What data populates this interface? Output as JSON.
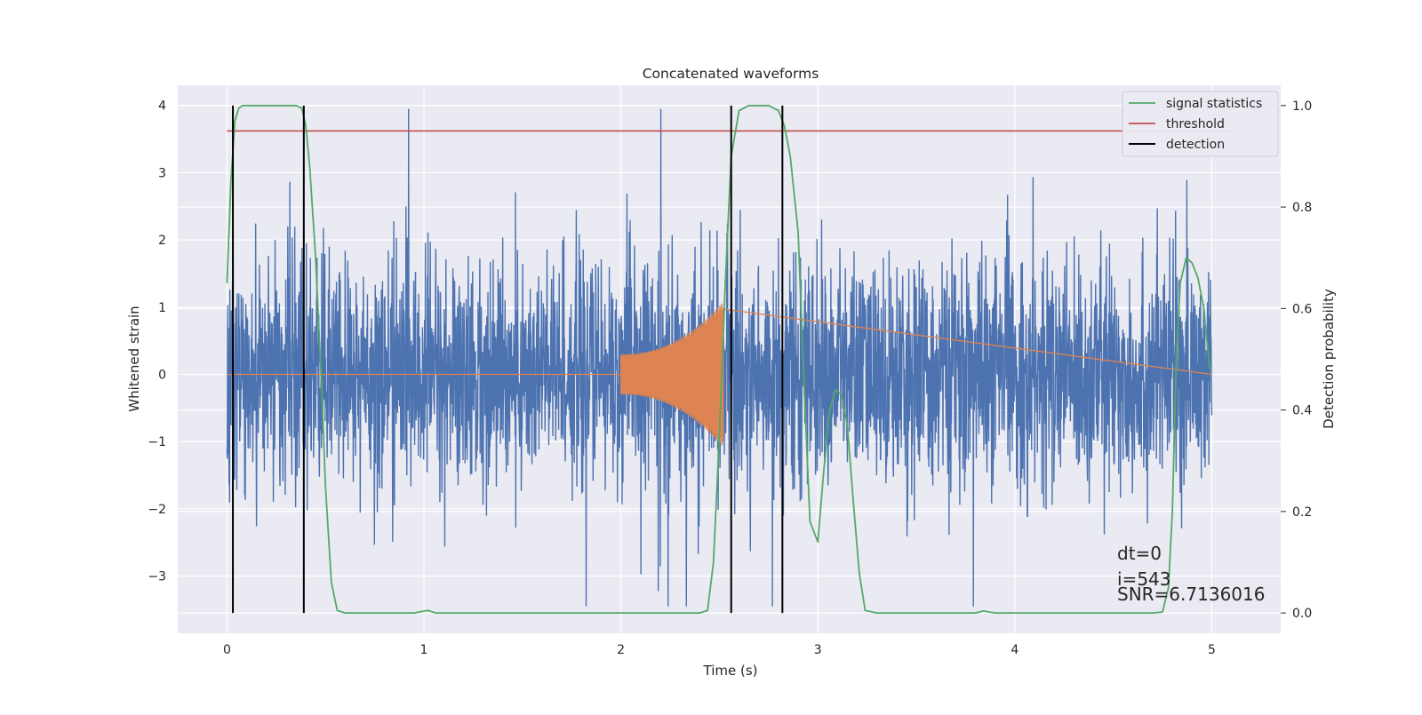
{
  "chart_data": {
    "type": "line",
    "title": "Concatenated waveforms",
    "xlabel": "Time (s)",
    "ylabel_left": "Whitened strain",
    "ylabel_right": "Detection probability",
    "xlim": [
      -0.25,
      5.35
    ],
    "ylim_left": [
      -3.85,
      4.3
    ],
    "ylim_right": [
      -0.04,
      1.04
    ],
    "xticks": [
      0,
      1,
      2,
      3,
      4,
      5
    ],
    "xtick_labels": [
      "0",
      "1",
      "2",
      "3",
      "4",
      "5"
    ],
    "yticks_left": [
      4,
      3,
      2,
      1,
      0,
      -1,
      -2,
      -3
    ],
    "ytick_labels_left": [
      "4",
      "3",
      "2",
      "1",
      "0",
      "−1",
      "−2",
      "−3"
    ],
    "yticks_right": [
      1.0,
      0.8,
      0.6,
      0.4,
      0.2,
      0.0
    ],
    "ytick_labels_right": [
      "1.0",
      "0.8",
      "0.6",
      "0.4",
      "0.2",
      "0.0"
    ],
    "grid": true,
    "legend_position": "top-right",
    "series": [
      {
        "name": "signal statistics",
        "axis": "right",
        "color": "#55a868",
        "x": [
          0.0,
          0.02,
          0.04,
          0.06,
          0.08,
          0.1,
          0.15,
          0.2,
          0.3,
          0.35,
          0.38,
          0.4,
          0.42,
          0.45,
          0.48,
          0.5,
          0.53,
          0.56,
          0.6,
          0.8,
          0.95,
          1.02,
          1.06,
          1.1,
          1.3,
          1.6,
          2.0,
          2.3,
          2.4,
          2.44,
          2.47,
          2.5,
          2.53,
          2.56,
          2.6,
          2.65,
          2.7,
          2.75,
          2.8,
          2.83,
          2.86,
          2.9,
          2.93,
          2.96,
          3.0,
          3.03,
          3.06,
          3.09,
          3.12,
          3.15,
          3.18,
          3.21,
          3.24,
          3.3,
          3.5,
          3.7,
          3.8,
          3.84,
          3.9,
          4.2,
          4.5,
          4.7,
          4.75,
          4.78,
          4.8,
          4.82,
          4.84,
          4.87,
          4.9,
          4.93,
          4.96,
          4.99
        ],
        "y": [
          0.65,
          0.85,
          0.97,
          0.995,
          1.0,
          1.0,
          1.0,
          1.0,
          1.0,
          1.0,
          0.995,
          0.96,
          0.88,
          0.7,
          0.45,
          0.25,
          0.06,
          0.005,
          0.0,
          0.0,
          0.0,
          0.005,
          0.0,
          0.0,
          0.0,
          0.0,
          0.0,
          0.0,
          0.0,
          0.005,
          0.1,
          0.35,
          0.65,
          0.9,
          0.99,
          1.0,
          1.0,
          1.0,
          0.99,
          0.96,
          0.9,
          0.75,
          0.45,
          0.18,
          0.14,
          0.28,
          0.4,
          0.44,
          0.43,
          0.37,
          0.22,
          0.08,
          0.005,
          0.0,
          0.0,
          0.0,
          0.0,
          0.004,
          0.0,
          0.0,
          0.0,
          0.0,
          0.002,
          0.05,
          0.2,
          0.5,
          0.65,
          0.7,
          0.69,
          0.66,
          0.6,
          0.48
        ]
      },
      {
        "name": "threshold",
        "axis": "right",
        "color": "#c44e52",
        "x": [
          0.0,
          5.1
        ],
        "y": [
          0.95,
          0.95
        ]
      },
      {
        "name": "detection",
        "axis": "right",
        "color": "#000000",
        "vlines": [
          0.03,
          0.39,
          2.56,
          2.82
        ],
        "ymin": 0.0,
        "ymax": 1.0
      },
      {
        "name": "",
        "axis": "left",
        "color": "#4c72b0",
        "x_range": [
          0.0,
          5.0
        ],
        "y_range": [
          -3.45,
          3.95
        ]
      },
      {
        "name": "",
        "axis": "left",
        "color": "#dd8452",
        "x_range": [
          0.0,
          5.0
        ],
        "chirp_x": [
          2.0,
          2.52
        ],
        "chirp_amplitude": [
          0.3,
          1.08
        ]
      }
    ],
    "annotations": [
      "dt=0",
      "i=543",
      "SNR=6.7136016"
    ]
  }
}
